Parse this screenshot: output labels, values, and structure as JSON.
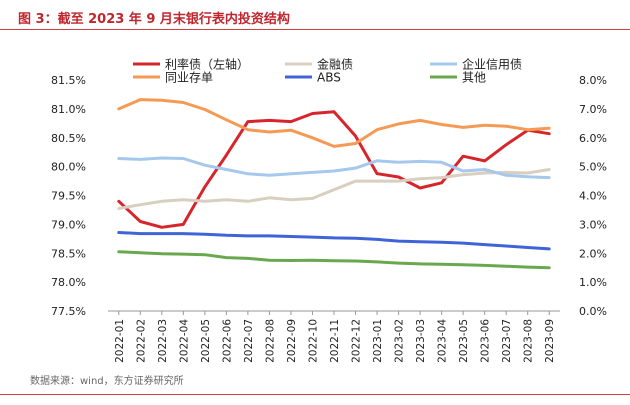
{
  "header": {
    "title": "图 3：截至 2023 年 9 月末银行表内投资结构"
  },
  "footer": {
    "source": "数据来源：wind，东方证券研究所"
  },
  "chart_data": {
    "type": "line",
    "title": "图 3：截至 2023 年 9 月末银行表内投资结构",
    "categories": [
      "2022-01",
      "2022-02",
      "2022-03",
      "2022-04",
      "2022-05",
      "2022-06",
      "2022-07",
      "2022-08",
      "2022-09",
      "2022-10",
      "2022-11",
      "2022-12",
      "2023-01",
      "2023-02",
      "2023-03",
      "2023-04",
      "2023-05",
      "2023-06",
      "2023-07",
      "2023-08",
      "2023-09"
    ],
    "left_axis": {
      "ylim": [
        77.5,
        81.5
      ],
      "ticks": [
        "77.5%",
        "78.0%",
        "78.5%",
        "79.0%",
        "79.5%",
        "80.0%",
        "80.5%",
        "81.0%",
        "81.5%"
      ]
    },
    "right_axis": {
      "ylim": [
        0,
        8
      ],
      "ticks": [
        "0.0%",
        "1.0%",
        "2.0%",
        "3.0%",
        "4.0%",
        "5.0%",
        "6.0%",
        "7.0%",
        "8.0%"
      ]
    },
    "series": [
      {
        "name": "利率债（左轴）",
        "axis": "left",
        "color": "#d7262b",
        "values": [
          79.4,
          79.05,
          78.95,
          79.0,
          79.65,
          80.2,
          80.78,
          80.8,
          80.78,
          80.92,
          80.95,
          80.53,
          79.88,
          79.82,
          79.63,
          79.72,
          80.18,
          80.1,
          80.38,
          80.63,
          80.57
        ]
      },
      {
        "name": "金融债",
        "axis": "right",
        "color": "#d8cfc0",
        "values": [
          3.55,
          3.68,
          3.8,
          3.85,
          3.8,
          3.85,
          3.8,
          3.92,
          3.85,
          3.9,
          4.2,
          4.5,
          4.5,
          4.5,
          4.58,
          4.62,
          4.72,
          4.78,
          4.8,
          4.78,
          4.9
        ]
      },
      {
        "name": "企业信用债",
        "axis": "right",
        "color": "#a6c8ec",
        "values": [
          5.28,
          5.25,
          5.3,
          5.28,
          5.05,
          4.9,
          4.75,
          4.7,
          4.75,
          4.8,
          4.85,
          4.95,
          5.2,
          5.15,
          5.18,
          5.15,
          4.85,
          4.9,
          4.7,
          4.65,
          4.62
        ]
      },
      {
        "name": "同业存单",
        "axis": "right",
        "color": "#f59a55",
        "values": [
          7.0,
          7.32,
          7.3,
          7.22,
          6.98,
          6.62,
          6.28,
          6.2,
          6.26,
          6.0,
          5.7,
          5.8,
          6.28,
          6.48,
          6.6,
          6.46,
          6.36,
          6.43,
          6.4,
          6.28,
          6.33
        ]
      },
      {
        "name": "ABS",
        "axis": "right",
        "color": "#3f64d8",
        "values": [
          2.72,
          2.68,
          2.68,
          2.68,
          2.66,
          2.62,
          2.6,
          2.6,
          2.58,
          2.56,
          2.53,
          2.52,
          2.48,
          2.42,
          2.4,
          2.38,
          2.35,
          2.3,
          2.25,
          2.2,
          2.15
        ]
      },
      {
        "name": "其他",
        "axis": "right",
        "color": "#6aa84f",
        "values": [
          2.05,
          2.02,
          1.98,
          1.97,
          1.95,
          1.85,
          1.82,
          1.76,
          1.75,
          1.76,
          1.74,
          1.73,
          1.7,
          1.66,
          1.63,
          1.62,
          1.6,
          1.58,
          1.55,
          1.52,
          1.5
        ]
      }
    ],
    "legend": {
      "placement": "top",
      "columns": 3
    }
  }
}
